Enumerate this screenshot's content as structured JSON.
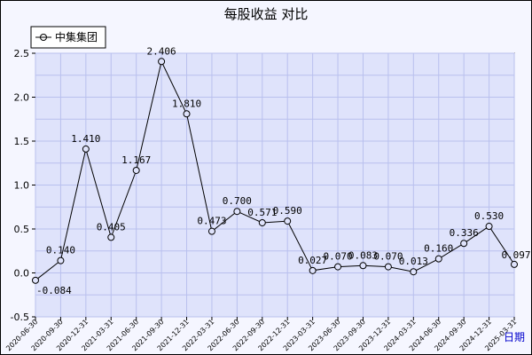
{
  "chart_data": {
    "type": "line",
    "title": "每股收益 对比",
    "xlabel": "日期",
    "ylabel": "",
    "ylim": [
      -0.5,
      2.5
    ],
    "yticks": [
      "2.5",
      "2.0",
      "1.5",
      "1.0",
      "0.5",
      "0.0",
      "-0.5"
    ],
    "grid": true,
    "legend_position": "top-left",
    "colors": {
      "line": "#000000",
      "plot_bg": "#dfe3fb",
      "grid": "#b9c0ee",
      "page_bg": "#f5f6ff"
    },
    "x": [
      "2020-06-30",
      "2020-09-30",
      "2020-12-31",
      "2021-03-31",
      "2021-06-30",
      "2021-09-30",
      "2021-12-31",
      "2022-03-31",
      "2022-06-30",
      "2022-09-30",
      "2022-12-31",
      "2023-03-31",
      "2023-06-30",
      "2023-09-30",
      "2023-12-31",
      "2024-03-31",
      "2024-06-30",
      "2024-09-30",
      "2024-12-31",
      "2025-03-31"
    ],
    "series": [
      {
        "name": "中集集团",
        "values": [
          -0.084,
          0.14,
          1.41,
          0.405,
          1.167,
          2.406,
          1.81,
          0.473,
          0.7,
          0.571,
          0.59,
          0.027,
          0.07,
          0.083,
          0.07,
          0.013,
          0.16,
          0.336,
          0.53,
          0.097
        ],
        "labels": [
          "-0.084",
          "0.140",
          "1.410",
          "0.405",
          "1.167",
          "2.406",
          "1.810",
          "0.473",
          "0.700",
          "0.571",
          "0.590",
          "0.027",
          "0.070",
          "0.083",
          "0.070",
          "0.013",
          "0.160",
          "0.336",
          "0.530",
          "0.097"
        ]
      }
    ]
  }
}
